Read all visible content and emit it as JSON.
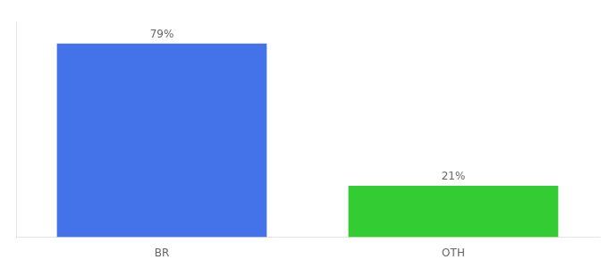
{
  "chart_data": {
    "type": "bar",
    "categories": [
      "BR",
      "OTH"
    ],
    "values": [
      79,
      21
    ],
    "value_labels": [
      "79%",
      "21%"
    ],
    "colors": [
      "#4472e8",
      "#33cc33"
    ],
    "ylim": [
      0,
      88
    ],
    "grid": false,
    "data_labels": true,
    "tick_labels": "x"
  }
}
